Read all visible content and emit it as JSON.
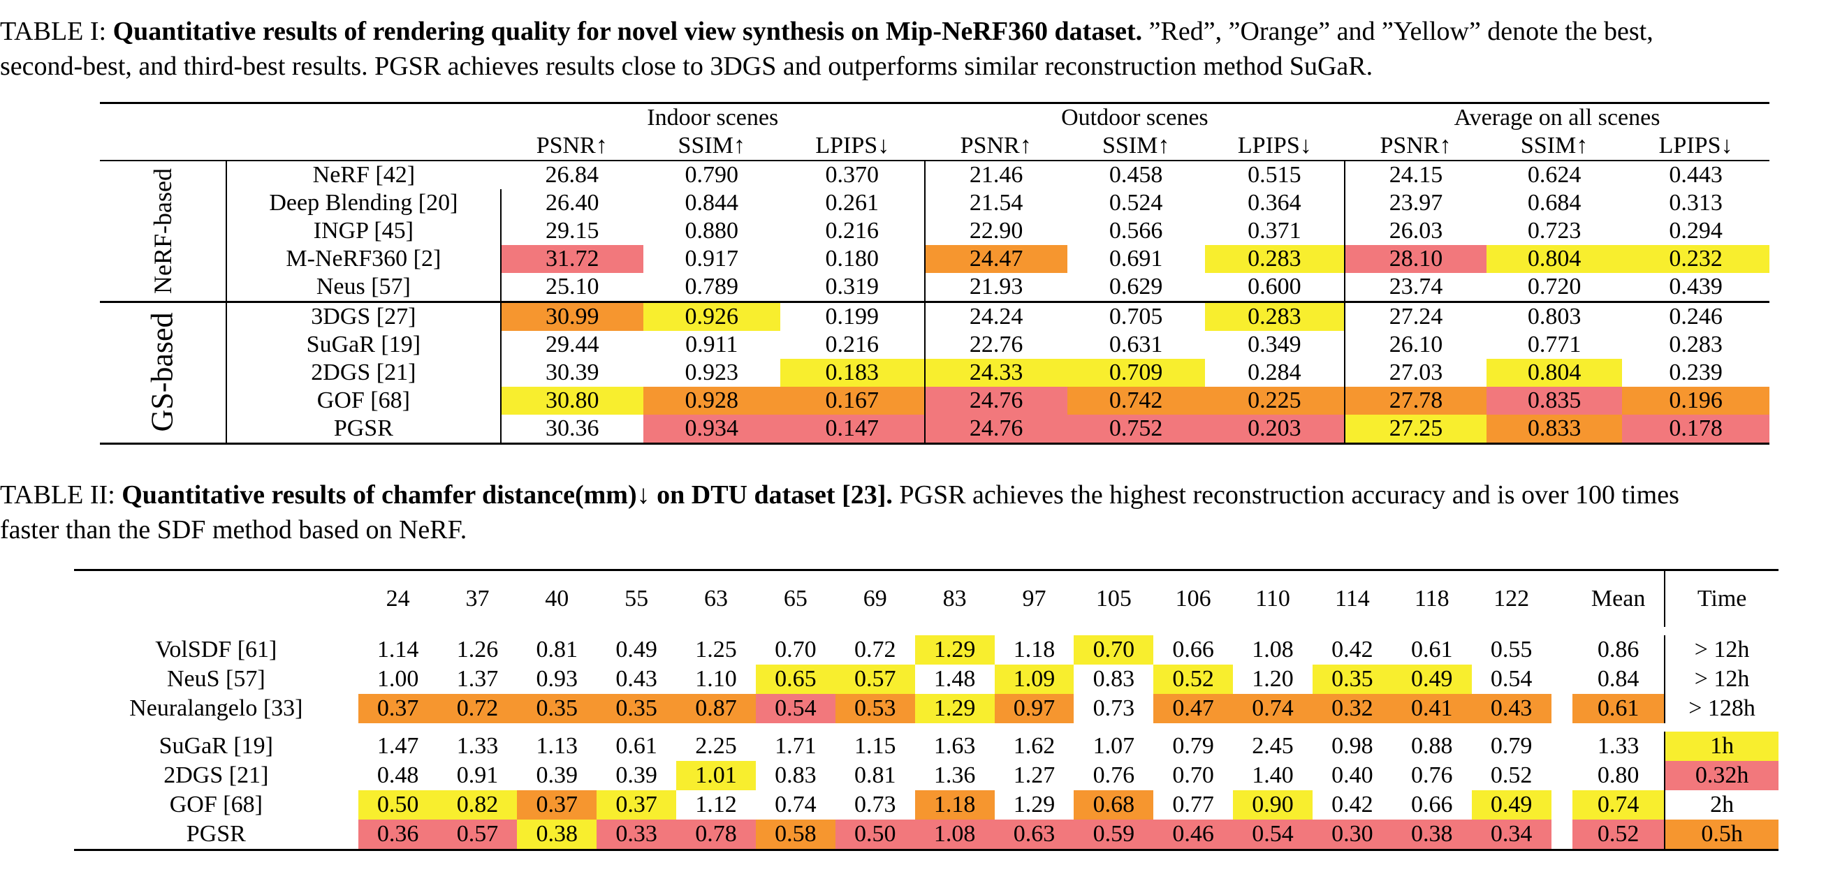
{
  "table1": {
    "caption_prefix": "TABLE I: ",
    "caption_bold": "Quantitative results of rendering quality for novel view synthesis on Mip-NeRF360 dataset.",
    "caption_rest_1": " ”Red”, ”Orange” and ”Yellow” denote the best,",
    "caption_line2": "second-best, and third-best results. PGSR achieves results close to 3DGS and outperforms similar reconstruction method SuGaR.",
    "group_headers": [
      "Indoor scenes",
      "Outdoor scenes",
      "Average on all scenes"
    ],
    "metric_headers": [
      "PSNR↑",
      "SSIM↑",
      "LPIPS↓",
      "PSNR↑",
      "SSIM↑",
      "LPIPS↓",
      "PSNR↑",
      "SSIM↑",
      "LPIPS↓"
    ],
    "section_labels": [
      "NeRF-based",
      "GS-based"
    ],
    "nerf_rows": [
      {
        "method": "NeRF [42]",
        "values": [
          "26.84",
          "0.790",
          "0.370",
          "21.46",
          "0.458",
          "0.515",
          "24.15",
          "0.624",
          "0.443"
        ],
        "hl": [
          "",
          "",
          "",
          "",
          "",
          "",
          "",
          "",
          ""
        ]
      },
      {
        "method": "Deep Blending [20]",
        "values": [
          "26.40",
          "0.844",
          "0.261",
          "21.54",
          "0.524",
          "0.364",
          "23.97",
          "0.684",
          "0.313"
        ],
        "hl": [
          "",
          "",
          "",
          "",
          "",
          "",
          "",
          "",
          ""
        ]
      },
      {
        "method": "INGP [45]",
        "values": [
          "29.15",
          "0.880",
          "0.216",
          "22.90",
          "0.566",
          "0.371",
          "26.03",
          "0.723",
          "0.294"
        ],
        "hl": [
          "",
          "",
          "",
          "",
          "",
          "",
          "",
          "",
          ""
        ]
      },
      {
        "method": "M-NeRF360 [2]",
        "values": [
          "31.72",
          "0.917",
          "0.180",
          "24.47",
          "0.691",
          "0.283",
          "28.10",
          "0.804",
          "0.232"
        ],
        "hl": [
          "red",
          "",
          "",
          "orange",
          "",
          "yellow",
          "red",
          "yellow",
          "yellow"
        ]
      },
      {
        "method": "Neus [57]",
        "values": [
          "25.10",
          "0.789",
          "0.319",
          "21.93",
          "0.629",
          "0.600",
          "23.74",
          "0.720",
          "0.439"
        ],
        "hl": [
          "",
          "",
          "",
          "",
          "",
          "",
          "",
          "",
          ""
        ]
      }
    ],
    "gs_rows": [
      {
        "method": "3DGS [27]",
        "values": [
          "30.99",
          "0.926",
          "0.199",
          "24.24",
          "0.705",
          "0.283",
          "27.24",
          "0.803",
          "0.246"
        ],
        "hl": [
          "orange",
          "yellow",
          "",
          "",
          "",
          "yellow",
          "",
          "",
          ""
        ]
      },
      {
        "method": "SuGaR [19]",
        "values": [
          "29.44",
          "0.911",
          "0.216",
          "22.76",
          "0.631",
          "0.349",
          "26.10",
          "0.771",
          "0.283"
        ],
        "hl": [
          "",
          "",
          "",
          "",
          "",
          "",
          "",
          "",
          ""
        ]
      },
      {
        "method": "2DGS [21]",
        "values": [
          "30.39",
          "0.923",
          "0.183",
          "24.33",
          "0.709",
          "0.284",
          "27.03",
          "0.804",
          "0.239"
        ],
        "hl": [
          "",
          "",
          "yellow",
          "yellow",
          "yellow",
          "",
          "",
          "yellow",
          ""
        ]
      },
      {
        "method": "GOF [68]",
        "values": [
          "30.80",
          "0.928",
          "0.167",
          "24.76",
          "0.742",
          "0.225",
          "27.78",
          "0.835",
          "0.196"
        ],
        "hl": [
          "yellow",
          "orange",
          "orange",
          "red",
          "orange",
          "orange",
          "orange",
          "red",
          "orange"
        ]
      },
      {
        "method": "PGSR",
        "values": [
          "30.36",
          "0.934",
          "0.147",
          "24.76",
          "0.752",
          "0.203",
          "27.25",
          "0.833",
          "0.178"
        ],
        "hl": [
          "",
          "red",
          "red",
          "red",
          "red",
          "red",
          "yellow",
          "orange",
          "red"
        ]
      }
    ]
  },
  "table2": {
    "caption_prefix": "TABLE II: ",
    "caption_bold": "Quantitative results of chamfer distance(mm)↓ on DTU dataset [23].",
    "caption_rest_1": " PGSR achieves the highest reconstruction accuracy and is over 100 times",
    "caption_line2": "faster than the SDF method based on NeRF.",
    "scan_headers": [
      "24",
      "37",
      "40",
      "55",
      "63",
      "65",
      "69",
      "83",
      "97",
      "105",
      "106",
      "110",
      "114",
      "118",
      "122"
    ],
    "mean_header": "Mean",
    "time_header": "Time",
    "sdf_rows": [
      {
        "method": "VolSDF [61]",
        "values": [
          "1.14",
          "1.26",
          "0.81",
          "0.49",
          "1.25",
          "0.70",
          "0.72",
          "1.29",
          "1.18",
          "0.70",
          "0.66",
          "1.08",
          "0.42",
          "0.61",
          "0.55"
        ],
        "hl": [
          "",
          "",
          "",
          "",
          "",
          "",
          "",
          "yellow",
          "",
          "yellow",
          "",
          "",
          "",
          "",
          ""
        ],
        "mean": "0.86",
        "mean_hl": "",
        "time": "> 12h",
        "time_hl": ""
      },
      {
        "method": "NeuS [57]",
        "values": [
          "1.00",
          "1.37",
          "0.93",
          "0.43",
          "1.10",
          "0.65",
          "0.57",
          "1.48",
          "1.09",
          "0.83",
          "0.52",
          "1.20",
          "0.35",
          "0.49",
          "0.54"
        ],
        "hl": [
          "",
          "",
          "",
          "",
          "",
          "yellow",
          "yellow",
          "",
          "yellow",
          "",
          "yellow",
          "",
          "yellow",
          "yellow",
          ""
        ],
        "mean": "0.84",
        "mean_hl": "",
        "time": "> 12h",
        "time_hl": ""
      },
      {
        "method": "Neuralangelo [33]",
        "values": [
          "0.37",
          "0.72",
          "0.35",
          "0.35",
          "0.87",
          "0.54",
          "0.53",
          "1.29",
          "0.97",
          "0.73",
          "0.47",
          "0.74",
          "0.32",
          "0.41",
          "0.43"
        ],
        "hl": [
          "orange",
          "orange",
          "orange",
          "orange",
          "orange",
          "red",
          "orange",
          "yellow",
          "orange",
          "",
          "orange",
          "orange",
          "orange",
          "orange",
          "orange"
        ],
        "mean": "0.61",
        "mean_hl": "orange",
        "time": "> 128h",
        "time_hl": ""
      }
    ],
    "gs_rows": [
      {
        "method": "SuGaR [19]",
        "values": [
          "1.47",
          "1.33",
          "1.13",
          "0.61",
          "2.25",
          "1.71",
          "1.15",
          "1.63",
          "1.62",
          "1.07",
          "0.79",
          "2.45",
          "0.98",
          "0.88",
          "0.79"
        ],
        "hl": [
          "",
          "",
          "",
          "",
          "",
          "",
          "",
          "",
          "",
          "",
          "",
          "",
          "",
          "",
          ""
        ],
        "mean": "1.33",
        "mean_hl": "",
        "time": "1h",
        "time_hl": "yellow"
      },
      {
        "method": "2DGS [21]",
        "values": [
          "0.48",
          "0.91",
          "0.39",
          "0.39",
          "1.01",
          "0.83",
          "0.81",
          "1.36",
          "1.27",
          "0.76",
          "0.70",
          "1.40",
          "0.40",
          "0.76",
          "0.52"
        ],
        "hl": [
          "",
          "",
          "",
          "",
          "yellow",
          "",
          "",
          "",
          "",
          "",
          "",
          "",
          "",
          "",
          ""
        ],
        "mean": "0.80",
        "mean_hl": "",
        "time": "0.32h",
        "time_hl": "red"
      },
      {
        "method": "GOF [68]",
        "values": [
          "0.50",
          "0.82",
          "0.37",
          "0.37",
          "1.12",
          "0.74",
          "0.73",
          "1.18",
          "1.29",
          "0.68",
          "0.77",
          "0.90",
          "0.42",
          "0.66",
          "0.49"
        ],
        "hl": [
          "yellow",
          "yellow",
          "orange",
          "yellow",
          "",
          "",
          "",
          "orange",
          "",
          "orange",
          "",
          "yellow",
          "",
          "",
          "yellow"
        ],
        "mean": "0.74",
        "mean_hl": "yellow",
        "time": "2h",
        "time_hl": ""
      },
      {
        "method": "PGSR",
        "values": [
          "0.36",
          "0.57",
          "0.38",
          "0.33",
          "0.78",
          "0.58",
          "0.50",
          "1.08",
          "0.63",
          "0.59",
          "0.46",
          "0.54",
          "0.30",
          "0.38",
          "0.34"
        ],
        "hl": [
          "red",
          "red",
          "yellow",
          "red",
          "red",
          "orange",
          "red",
          "red",
          "red",
          "red",
          "red",
          "red",
          "red",
          "red",
          "red"
        ],
        "mean": "0.52",
        "mean_hl": "red",
        "time": "0.5h",
        "time_hl": "orange"
      }
    ]
  },
  "colors": {
    "red": "#f2787c",
    "orange": "#f6962f",
    "yellow": "#f8ee2e"
  }
}
